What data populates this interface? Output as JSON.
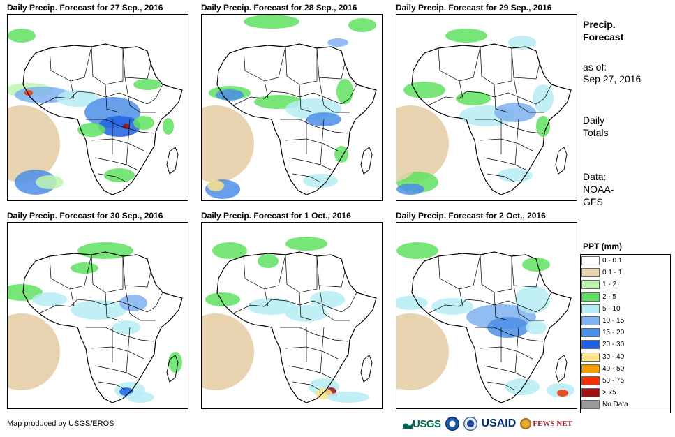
{
  "panels": [
    {
      "title": "Daily Precip. Forecast for 27  Sep., 2016"
    },
    {
      "title": "Daily Precip. Forecast for 28  Sep., 2016"
    },
    {
      "title": "Daily Precip. Forecast for 29  Sep., 2016"
    },
    {
      "title": "Daily Precip. Forecast for 30  Sep., 2016"
    },
    {
      "title": "Daily Precip. Forecast for 1 Oct., 2016"
    },
    {
      "title": "Daily Precip. Forecast for 2 Oct., 2016"
    }
  ],
  "side": {
    "title_line1": "Precip.",
    "title_line2": "Forecast",
    "asof_line1": "as of:",
    "asof_line2": "Sep 27, 2016",
    "totals_line1": "Daily",
    "totals_line2": "Totals",
    "data_line1": "Data:",
    "data_line2": "NOAA-",
    "data_line3": "GFS"
  },
  "legend": {
    "title": "PPT (mm)",
    "items": [
      {
        "label": "0 - 0.1",
        "color": "#ffffff"
      },
      {
        "label": "0.1 - 1",
        "color": "#e8d3b0"
      },
      {
        "label": "1 - 2",
        "color": "#bdf5b0"
      },
      {
        "label": "2 - 5",
        "color": "#5fe05f"
      },
      {
        "label": "5 - 10",
        "color": "#b5ecf5"
      },
      {
        "label": "10 - 15",
        "color": "#7fb2f0"
      },
      {
        "label": "15 - 20",
        "color": "#4c8ee8"
      },
      {
        "label": "20 - 30",
        "color": "#2060e0"
      },
      {
        "label": "30 - 40",
        "color": "#fae38a"
      },
      {
        "label": "40 - 50",
        "color": "#f5a000"
      },
      {
        "label": "50 - 75",
        "color": "#f53000"
      },
      {
        "label": "> 75",
        "color": "#a01010"
      },
      {
        "label": "No Data",
        "color": "#999999"
      }
    ]
  },
  "footer": {
    "credit": "Map produced by USGS/EROS"
  },
  "logos": {
    "usgs": "USGS",
    "usaid": "USAID",
    "fewsnet": "FEWS NET"
  }
}
